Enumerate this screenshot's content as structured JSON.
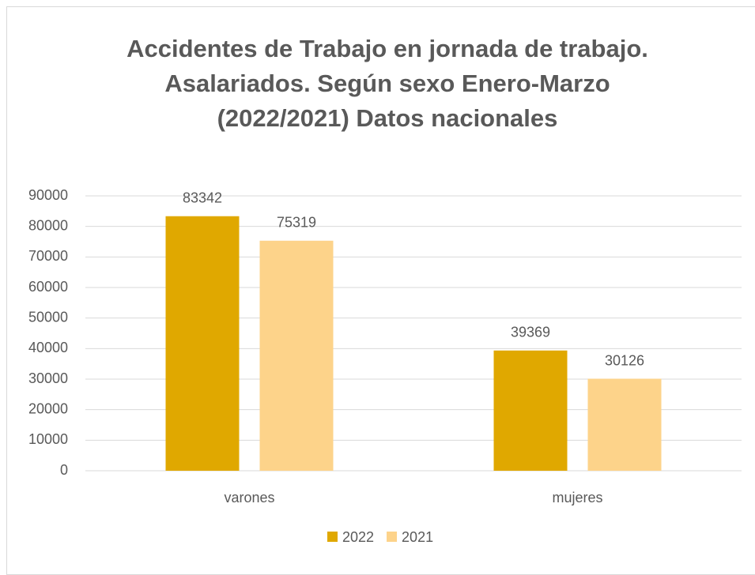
{
  "chart_data": {
    "type": "bar",
    "title": "Accidentes de Trabajo en jornada de trabajo. Asalariados. Según sexo Enero-Marzo (2022/2021) Datos nacionales",
    "categories": [
      "varones",
      "mujeres"
    ],
    "series": [
      {
        "name": "2022",
        "color": "#e0a800",
        "values": [
          83342,
          39369
        ]
      },
      {
        "name": "2021",
        "color": "#fdd38a",
        "values": [
          75319,
          30126
        ]
      }
    ],
    "ylim": [
      0,
      90000
    ],
    "yticks": [
      0,
      10000,
      20000,
      30000,
      40000,
      50000,
      60000,
      70000,
      80000,
      90000
    ],
    "grid": true,
    "legend": "bottom",
    "data_labels": true
  }
}
